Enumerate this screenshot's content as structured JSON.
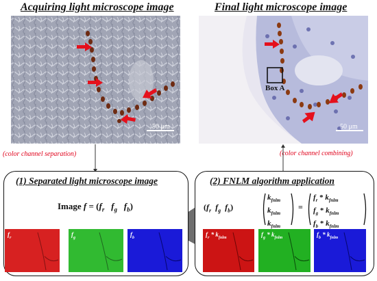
{
  "titles": {
    "acquiring": "Acquiring light microscope image",
    "final": "Final light microscope image"
  },
  "micrographs": {
    "scale_bar": "50 μm",
    "box_label": "Box A"
  },
  "steps": {
    "separation": "(color channel separation)",
    "combining": "(color channel combining)"
  },
  "panel_left": {
    "title": "(1) Separated light microscope image",
    "equation": {
      "lhs": "Image ",
      "f": "f",
      "eq": " = (",
      "fr": "f",
      "r": "r",
      "fg": "f",
      "g": "g",
      "fb": "f",
      "b": "b",
      "close": ")"
    },
    "channels": [
      {
        "label_f": "f",
        "label_sub": "r",
        "color": "#d01818"
      },
      {
        "label_f": "f",
        "label_sub": "g",
        "color": "#1fae1f"
      },
      {
        "label_f": "f",
        "label_sub": "b",
        "color": "#1a1ad8"
      }
    ]
  },
  "panel_right": {
    "title": "(2) FNLM algorithm application",
    "kernel_f": "k",
    "kernel_sub": "fnlm",
    "times": " * ",
    "channels": [
      {
        "label_f": "f",
        "label_sub": "r",
        "color": "#d01818"
      },
      {
        "label_f": "f",
        "label_sub": "g",
        "color": "#1fae1f"
      },
      {
        "label_f": "f",
        "label_sub": "b",
        "color": "#1a1ad8"
      }
    ]
  },
  "colors": {
    "arrow_red": "#e5101c",
    "step_text": "#e0001a"
  }
}
